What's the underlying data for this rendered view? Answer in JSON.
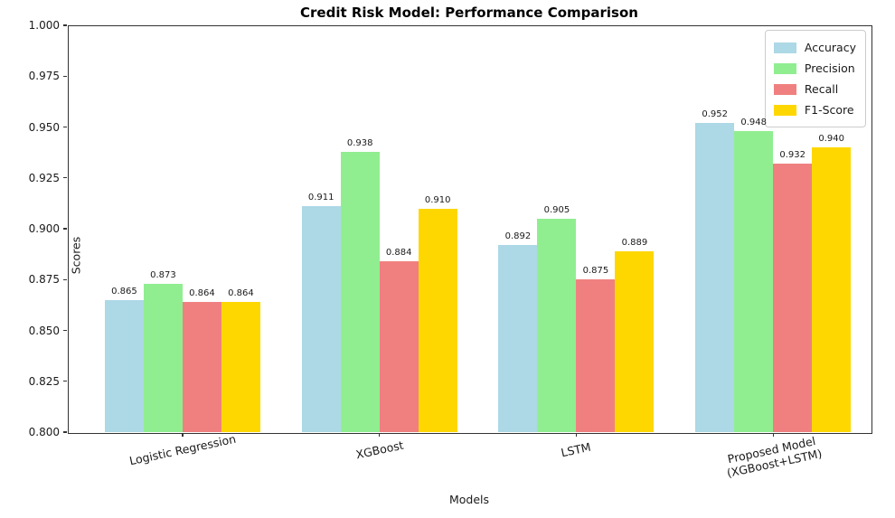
{
  "title": "Credit Risk Model: Performance Comparison",
  "chart_data": {
    "type": "bar",
    "title": "Credit Risk Model: Performance Comparison",
    "xlabel": "Models",
    "ylabel": "Scores",
    "categories": [
      "Logistic Regression",
      "XGBoost",
      "LSTM",
      "Proposed Model\n(XGBoost+LSTM)"
    ],
    "series": [
      {
        "name": "Accuracy",
        "color": "#ADD8E6",
        "values": [
          0.865,
          0.911,
          0.892,
          0.952
        ]
      },
      {
        "name": "Precision",
        "color": "#90EE90",
        "values": [
          0.873,
          0.938,
          0.905,
          0.948
        ]
      },
      {
        "name": "Recall",
        "color": "#F08080",
        "values": [
          0.864,
          0.884,
          0.875,
          0.932
        ]
      },
      {
        "name": "F1-Score",
        "color": "#FFD700",
        "values": [
          0.864,
          0.91,
          0.889,
          0.94
        ]
      }
    ],
    "ylim": [
      0.8,
      1.0
    ],
    "ytick_step": 0.025,
    "ytick_labels": [
      "0.800",
      "0.825",
      "0.850",
      "0.875",
      "0.900",
      "0.925",
      "0.950",
      "0.975",
      "1.000"
    ],
    "bar_value_labels": true,
    "value_label_decimals": 3,
    "grid": false,
    "legend_position": "upper-right",
    "x_tick_rotation_deg": -12
  }
}
